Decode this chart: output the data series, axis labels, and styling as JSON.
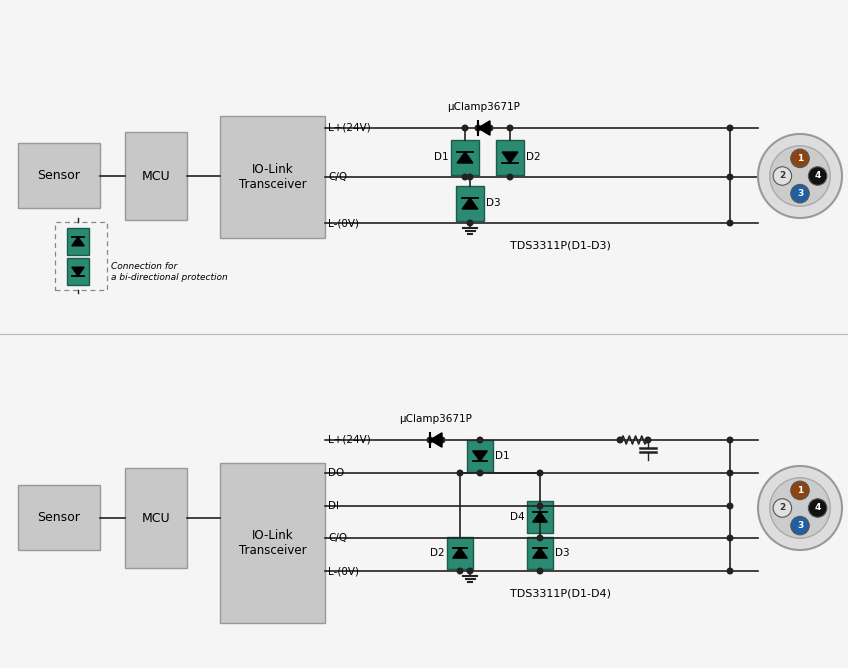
{
  "bg_color": "#f5f5f5",
  "box_color": "#c8c8c8",
  "box_edge": "#999999",
  "teal_color": "#2a8a72",
  "teal_edge": "#1a5c48",
  "line_color": "#222222",
  "uclamp_label": "μClamp3671P",
  "tds1_label": "TDS3311P(D1-D3)",
  "tds2_label": "TDS3311P(D1-D4)",
  "conn_label": "Connection for\na bi-directional protection"
}
